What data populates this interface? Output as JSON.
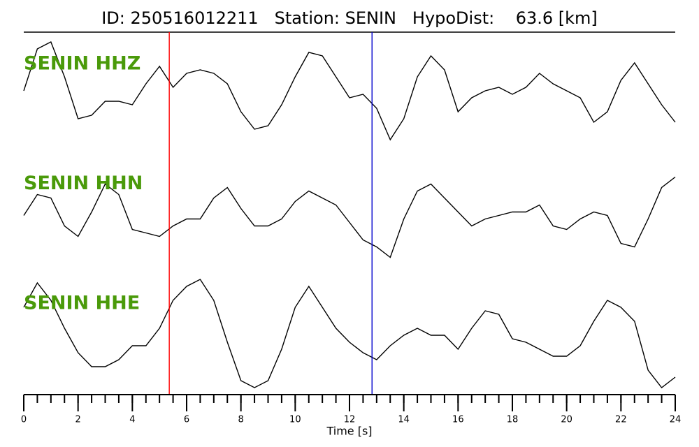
{
  "chart_data": {
    "type": "line",
    "title": "ID: 250516012211   Station: SENIN   HypoDist:    63.6 [km]",
    "xlabel": "Time [s]",
    "xlim": [
      0,
      24
    ],
    "xticks": [
      0,
      2,
      4,
      6,
      8,
      10,
      12,
      14,
      16,
      18,
      20,
      22,
      24
    ],
    "xminor": [
      0,
      0.5,
      1,
      1.5,
      2,
      2.5,
      3,
      3.5,
      4,
      4.5,
      5,
      5.5,
      6,
      6.5,
      7,
      7.5,
      8,
      8.5,
      9,
      9.5,
      10,
      10.5,
      11,
      11.5,
      12,
      12.5,
      13,
      13.5,
      14,
      14.5,
      15,
      15.5,
      16,
      16.5,
      17,
      17.5,
      18,
      18.5,
      19,
      19.5,
      20,
      20.5,
      21,
      21.5,
      22,
      22.5,
      23,
      23.5,
      24
    ],
    "ylim": [
      -85,
      85
    ],
    "x": [
      0,
      0.5,
      1,
      1.5,
      2,
      2.5,
      3,
      3.5,
      4,
      4.5,
      5,
      5.5,
      6,
      6.5,
      7,
      7.5,
      8,
      8.5,
      9,
      9.5,
      10,
      10.5,
      11,
      11.5,
      12,
      12.5,
      13,
      13.5,
      14,
      14.5,
      15,
      15.5,
      16,
      16.5,
      17,
      17.5,
      18,
      18.5,
      19,
      19.5,
      20,
      20.5,
      21,
      21.5,
      22,
      22.5,
      23,
      23.5,
      24
    ],
    "label_color": "#4a9a0a",
    "series": [
      {
        "name": "SENIN HHZ",
        "color": "#000000",
        "values": [
          7,
          67,
          77,
          27,
          -33,
          -28,
          -8,
          -8,
          -13,
          17,
          42,
          12,
          32,
          37,
          32,
          17,
          -23,
          -48,
          -43,
          -13,
          27,
          62,
          57,
          27,
          -3,
          2,
          -18,
          -63,
          -33,
          27,
          57,
          37,
          -23,
          -3,
          7,
          12,
          2,
          12,
          32,
          17,
          7,
          -3,
          -38,
          -23,
          22,
          47,
          17,
          -13,
          -38
        ]
      },
      {
        "name": "SENIN HHN",
        "color": "#000000",
        "values": [
          0,
          30,
          25,
          -15,
          -30,
          5,
          45,
          30,
          -20,
          -25,
          -30,
          -15,
          -5,
          -5,
          25,
          40,
          10,
          -15,
          -15,
          -5,
          20,
          35,
          25,
          15,
          -10,
          -35,
          -45,
          -60,
          -5,
          35,
          45,
          25,
          5,
          -15,
          -5,
          0,
          5,
          5,
          15,
          -15,
          -20,
          -5,
          5,
          0,
          -40,
          -45,
          -5,
          40,
          55
        ]
      },
      {
        "name": "SENIN HHE",
        "color": "#000000",
        "values": [
          40,
          75,
          50,
          10,
          -25,
          -45,
          -45,
          -35,
          -15,
          -15,
          10,
          50,
          70,
          80,
          50,
          -10,
          -65,
          -75,
          -65,
          -20,
          40,
          70,
          40,
          10,
          -10,
          -25,
          -35,
          -15,
          0,
          10,
          0,
          0,
          -20,
          10,
          35,
          30,
          -5,
          -10,
          -20,
          -30,
          -30,
          -15,
          20,
          50,
          40,
          20,
          -50,
          -75,
          -60
        ]
      }
    ],
    "markers": [
      {
        "value": 5.36,
        "color": "#ff0000"
      },
      {
        "value": 12.83,
        "color": "#0000cc"
      }
    ]
  }
}
